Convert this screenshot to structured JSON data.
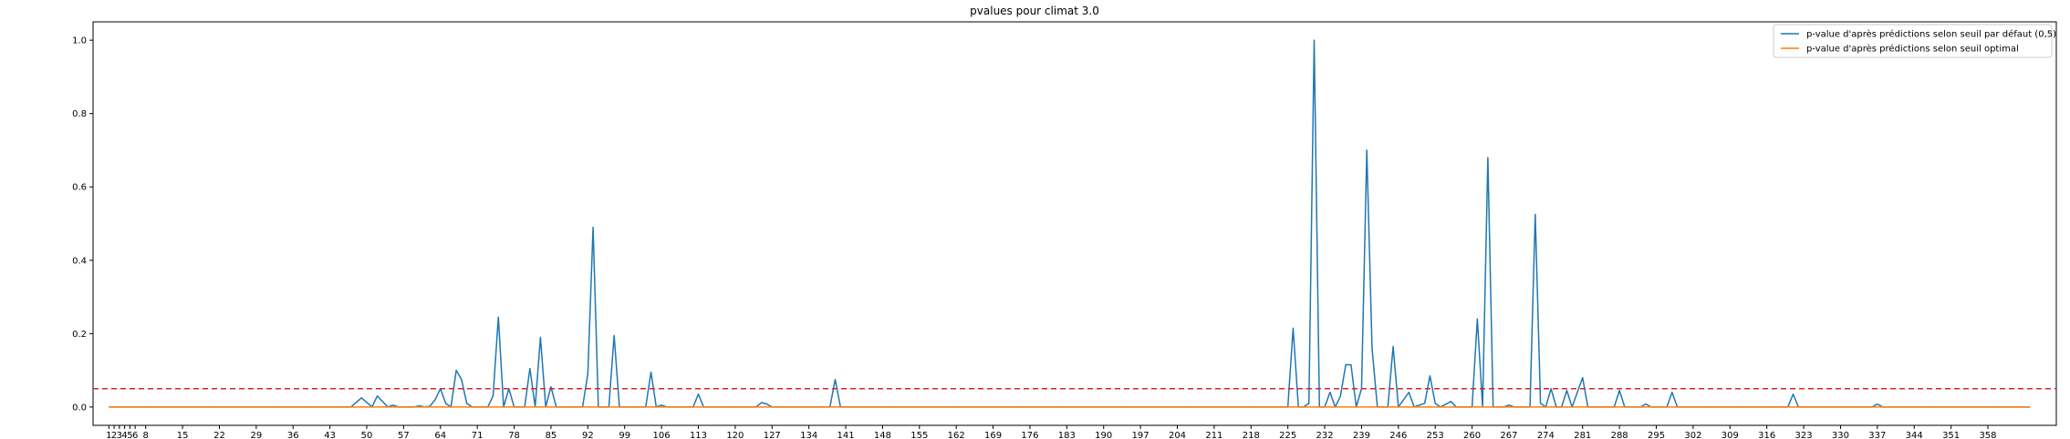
{
  "chart_data": {
    "type": "line",
    "title": "pvalues pour climat 3.0",
    "xlabel": "",
    "ylabel": "",
    "xlim": [
      -2,
      371
    ],
    "ylim": [
      -0.05,
      1.05
    ],
    "x_ticks": [
      1,
      2,
      3,
      4,
      5,
      6,
      8,
      15,
      22,
      29,
      36,
      43,
      50,
      57,
      64,
      71,
      78,
      85,
      92,
      99,
      106,
      113,
      120,
      127,
      134,
      141,
      148,
      155,
      162,
      169,
      176,
      183,
      190,
      197,
      204,
      211,
      218,
      225,
      232,
      239,
      246,
      253,
      260,
      267,
      274,
      281,
      288,
      295,
      302,
      309,
      316,
      323,
      330,
      337,
      344,
      351,
      358
    ],
    "y_ticks": [
      0.0,
      0.2,
      0.4,
      0.6,
      0.8,
      1.0
    ],
    "y_tick_labels": [
      "0.0",
      "0.2",
      "0.4",
      "0.6",
      "0.8",
      "1.0"
    ],
    "threshold": {
      "y": 0.05,
      "color": "#d62728",
      "style": "dashed"
    },
    "legend": {
      "placement": "top-right"
    },
    "series": [
      {
        "name": "p-value d'après prédictions selon seuil par défaut (0,5)",
        "color": "#1f77b4",
        "points": [
          [
            1,
            0
          ],
          [
            47,
            0
          ],
          [
            49,
            0.025
          ],
          [
            51,
            0
          ],
          [
            52,
            0.03
          ],
          [
            54,
            0
          ],
          [
            55,
            0.005
          ],
          [
            56,
            0
          ],
          [
            59,
            0
          ],
          [
            60,
            0.003
          ],
          [
            61,
            0
          ],
          [
            62,
            0.002
          ],
          [
            63,
            0.02
          ],
          [
            64,
            0.05
          ],
          [
            65,
            0.01
          ],
          [
            66,
            0
          ],
          [
            67,
            0.1
          ],
          [
            68,
            0.075
          ],
          [
            69,
            0.01
          ],
          [
            70,
            0
          ],
          [
            73,
            0
          ],
          [
            74,
            0.03
          ],
          [
            75,
            0.245
          ],
          [
            76,
            0
          ],
          [
            77,
            0.05
          ],
          [
            78,
            0
          ],
          [
            80,
            0
          ],
          [
            81,
            0.105
          ],
          [
            82,
            0
          ],
          [
            83,
            0.19
          ],
          [
            84,
            0
          ],
          [
            85,
            0.055
          ],
          [
            86,
            0
          ],
          [
            91,
            0
          ],
          [
            92,
            0.09
          ],
          [
            93,
            0.49
          ],
          [
            94,
            0
          ],
          [
            96,
            0
          ],
          [
            97,
            0.195
          ],
          [
            98,
            0
          ],
          [
            99,
            0
          ],
          [
            103,
            0
          ],
          [
            104,
            0.095
          ],
          [
            105,
            0
          ],
          [
            106,
            0.005
          ],
          [
            107,
            0
          ],
          [
            112,
            0
          ],
          [
            113,
            0.035
          ],
          [
            114,
            0
          ],
          [
            124,
            0
          ],
          [
            125,
            0.012
          ],
          [
            126,
            0.008
          ],
          [
            127,
            0
          ],
          [
            138,
            0
          ],
          [
            139,
            0.075
          ],
          [
            140,
            0
          ],
          [
            225,
            0
          ],
          [
            226,
            0.215
          ],
          [
            227,
            0
          ],
          [
            228,
            0
          ],
          [
            229,
            0.01
          ],
          [
            230,
            1.0
          ],
          [
            231,
            0
          ],
          [
            232,
            0
          ],
          [
            233,
            0.04
          ],
          [
            234,
            0
          ],
          [
            235,
            0.03
          ],
          [
            236,
            0.115
          ],
          [
            237,
            0.115
          ],
          [
            238,
            0
          ],
          [
            239,
            0.05
          ],
          [
            240,
            0.7
          ],
          [
            241,
            0.16
          ],
          [
            242,
            0
          ],
          [
            244,
            0
          ],
          [
            245,
            0.165
          ],
          [
            246,
            0
          ],
          [
            248,
            0.04
          ],
          [
            249,
            0
          ],
          [
            251,
            0.01
          ],
          [
            252,
            0.085
          ],
          [
            253,
            0.01
          ],
          [
            254,
            0
          ],
          [
            256,
            0.015
          ],
          [
            257,
            0
          ],
          [
            260,
            0
          ],
          [
            261,
            0.24
          ],
          [
            262,
            0
          ],
          [
            263,
            0.68
          ],
          [
            264,
            0
          ],
          [
            266,
            0
          ],
          [
            267,
            0.005
          ],
          [
            268,
            0
          ],
          [
            271,
            0
          ],
          [
            272,
            0.525
          ],
          [
            273,
            0.01
          ],
          [
            274,
            0
          ],
          [
            275,
            0.05
          ],
          [
            276,
            0
          ],
          [
            277,
            0
          ],
          [
            278,
            0.045
          ],
          [
            279,
            0
          ],
          [
            280,
            0.04
          ],
          [
            281,
            0.08
          ],
          [
            282,
            0
          ],
          [
            287,
            0
          ],
          [
            288,
            0.045
          ],
          [
            289,
            0
          ],
          [
            292,
            0
          ],
          [
            293,
            0.008
          ],
          [
            294,
            0
          ],
          [
            297,
            0
          ],
          [
            298,
            0.04
          ],
          [
            299,
            0
          ],
          [
            320,
            0
          ],
          [
            321,
            0.035
          ],
          [
            322,
            0
          ],
          [
            336,
            0
          ],
          [
            337,
            0.008
          ],
          [
            338,
            0
          ],
          [
            366,
            0
          ]
        ]
      },
      {
        "name": "p-value d'après prédictions selon seuil optimal",
        "color": "#ff7f0e",
        "points": [
          [
            1,
            0
          ],
          [
            366,
            0
          ]
        ]
      }
    ],
    "grid": false
  }
}
